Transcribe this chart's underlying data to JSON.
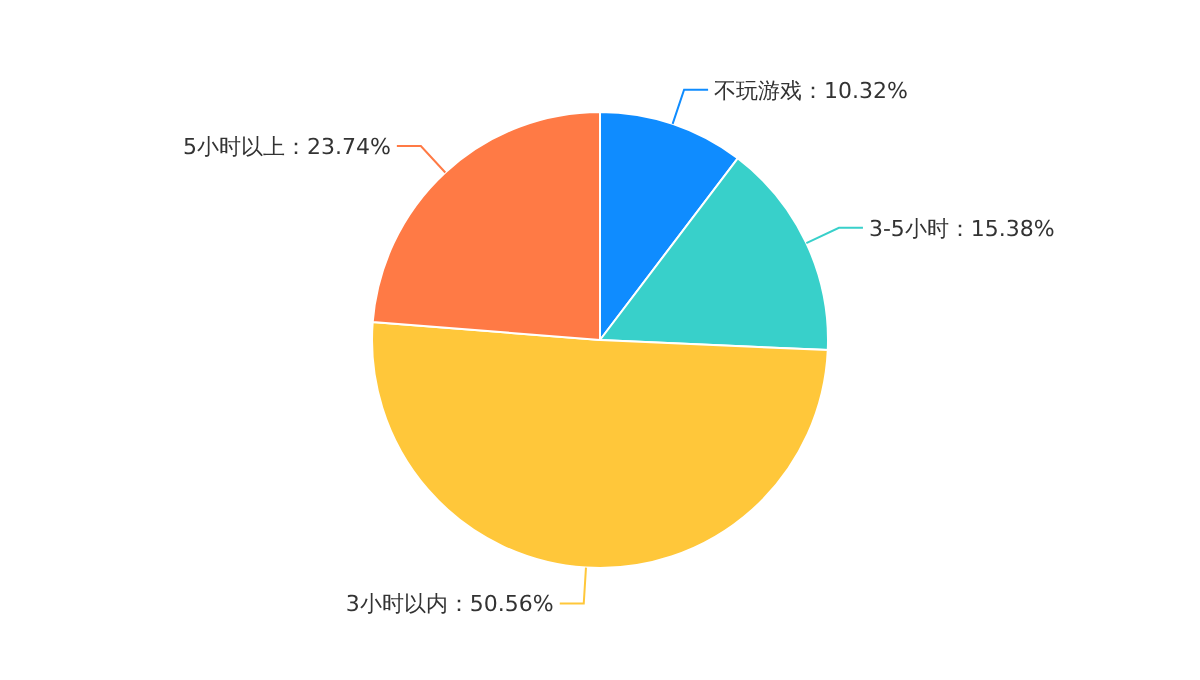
{
  "chart_data": {
    "type": "pie",
    "categories": [
      "不玩游戏",
      "3-5小时",
      "3小时以内",
      "5小时以上"
    ],
    "values": [
      10.32,
      15.38,
      50.56,
      23.74
    ],
    "value_labels": [
      "10.32%",
      "15.38%",
      "50.56%",
      "23.74%"
    ],
    "colors": [
      "#0f8cff",
      "#38d0ca",
      "#ffc73a",
      "#ff7a45"
    ]
  }
}
